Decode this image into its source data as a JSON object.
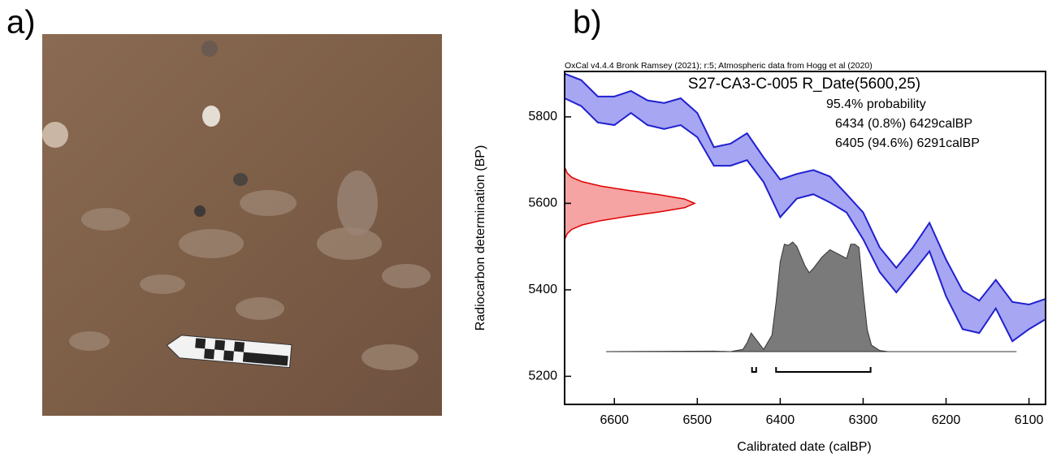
{
  "panel_labels": [
    "a)",
    "b)"
  ],
  "chart_data": {
    "type": "calibration",
    "header": "OxCal v4.4.4 Bronk Ramsey (2021); r:5; Atmospheric data from Hogg et al (2020)",
    "title": "S27-CA3-C-005 R_Date(5600,25)",
    "probability_label": "95.4% probability",
    "range_labels": [
      "6434 (0.8%) 6429calBP",
      "6405 (94.6%) 6291calBP"
    ],
    "x_label": "Calibrated date (calBP)",
    "y_label": "Radiocarbon determination (BP)",
    "xlim": [
      6660,
      6080
    ],
    "ylim": [
      5135,
      5905
    ],
    "xticks": [
      6600,
      6500,
      6400,
      6300,
      6200,
      6100
    ],
    "yticks": [
      5200,
      5400,
      5600,
      5800
    ],
    "calibration": {
      "color": "#2020d0",
      "fill": "#a6a6f2",
      "x": [
        6660,
        6640,
        6620,
        6600,
        6580,
        6560,
        6540,
        6520,
        6500,
        6480,
        6460,
        6440,
        6420,
        6400,
        6380,
        6360,
        6340,
        6320,
        6300,
        6280,
        6260,
        6240,
        6220,
        6200,
        6180,
        6160,
        6140,
        6120,
        6100,
        6080
      ],
      "upper": [
        5900,
        5885,
        5847,
        5847,
        5860,
        5838,
        5832,
        5843,
        5809,
        5730,
        5738,
        5762,
        5706,
        5655,
        5668,
        5677,
        5662,
        5621,
        5579,
        5498,
        5451,
        5498,
        5555,
        5470,
        5398,
        5375,
        5423,
        5372,
        5366,
        5379
      ],
      "lower": [
        5843,
        5825,
        5787,
        5781,
        5809,
        5781,
        5772,
        5781,
        5753,
        5687,
        5687,
        5700,
        5649,
        5568,
        5611,
        5621,
        5602,
        5579,
        5517,
        5441,
        5394,
        5441,
        5489,
        5385,
        5309,
        5300,
        5357,
        5281,
        5309,
        5332
      ]
    },
    "radiocarbon": {
      "color": "#e00000",
      "fill": "#f5a3a3",
      "y": [
        5520,
        5530,
        5540,
        5550,
        5560,
        5570,
        5580,
        5590,
        5600,
        5610,
        5620,
        5630,
        5640,
        5650,
        5660,
        5670,
        5680
      ],
      "density": [
        0.006,
        0.02,
        0.056,
        0.135,
        0.278,
        0.487,
        0.726,
        0.923,
        1,
        0.923,
        0.726,
        0.487,
        0.278,
        0.135,
        0.056,
        0.02,
        0.006
      ]
    },
    "posterior": {
      "color": "#7a7a7a",
      "x": [
        6610,
        6480,
        6460,
        6445,
        6440,
        6435,
        6430,
        6420,
        6410,
        6405,
        6400,
        6395,
        6390,
        6385,
        6380,
        6370,
        6365,
        6360,
        6350,
        6340,
        6330,
        6320,
        6315,
        6310,
        6305,
        6300,
        6295,
        6290,
        6280,
        6270,
        6115
      ],
      "density": [
        0,
        0.005,
        0,
        0.02,
        0.08,
        0.17,
        0.12,
        0.02,
        0.15,
        0.45,
        0.82,
        0.98,
        0.97,
        1,
        0.96,
        0.78,
        0.72,
        0.76,
        0.86,
        0.93,
        0.89,
        0.85,
        0.98,
        0.98,
        0.95,
        0.55,
        0.2,
        0.06,
        0.01,
        0,
        0
      ]
    },
    "ranges": [
      {
        "from": 6434,
        "to": 6429
      },
      {
        "from": 6405,
        "to": 6291
      }
    ]
  }
}
